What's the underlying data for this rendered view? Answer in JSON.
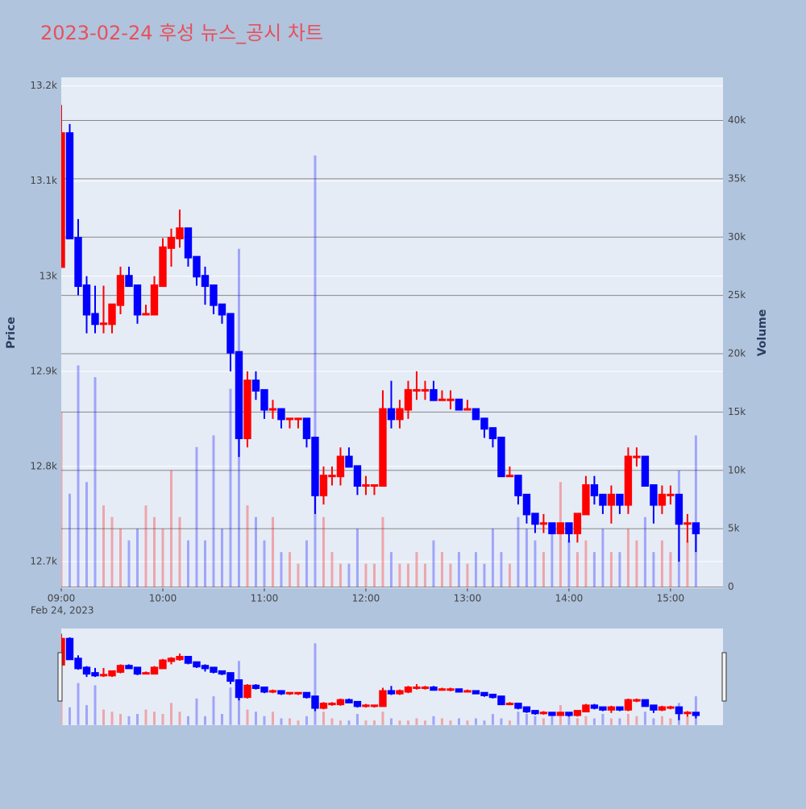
{
  "chart_data": {
    "type": "candlestick",
    "title": "2023-02-24 후성 뉴스_공시 차트",
    "x_date_label": "Feb 24, 2023",
    "yaxis_title": "Price",
    "y2axis_title": "Volume",
    "increasing_color": "#ff0000",
    "decreasing_color": "#0000ff",
    "grid": true,
    "rangeslider": true,
    "x": [
      "2023-02-24 09:00",
      "2023-02-24 09:05",
      "2023-02-24 09:10",
      "2023-02-24 09:15",
      "2023-02-24 09:20",
      "2023-02-24 09:25",
      "2023-02-24 09:30",
      "2023-02-24 09:35",
      "2023-02-24 09:40",
      "2023-02-24 09:45",
      "2023-02-24 09:50",
      "2023-02-24 09:55",
      "2023-02-24 10:00",
      "2023-02-24 10:05",
      "2023-02-24 10:10",
      "2023-02-24 10:15",
      "2023-02-24 10:20",
      "2023-02-24 10:25",
      "2023-02-24 10:30",
      "2023-02-24 10:35",
      "2023-02-24 10:40",
      "2023-02-24 10:45",
      "2023-02-24 10:50",
      "2023-02-24 10:55",
      "2023-02-24 11:00",
      "2023-02-24 11:05",
      "2023-02-24 11:10",
      "2023-02-24 11:15",
      "2023-02-24 11:20",
      "2023-02-24 11:25",
      "2023-02-24 11:30",
      "2023-02-24 11:35",
      "2023-02-24 11:40",
      "2023-02-24 11:45",
      "2023-02-24 11:50",
      "2023-02-24 11:55",
      "2023-02-24 12:00",
      "2023-02-24 12:05",
      "2023-02-24 12:10",
      "2023-02-24 12:15",
      "2023-02-24 12:20",
      "2023-02-24 12:25",
      "2023-02-24 12:30",
      "2023-02-24 12:35",
      "2023-02-24 12:40",
      "2023-02-24 12:45",
      "2023-02-24 12:50",
      "2023-02-24 12:55",
      "2023-02-24 13:00",
      "2023-02-24 13:05",
      "2023-02-24 13:10",
      "2023-02-24 13:15",
      "2023-02-24 13:20",
      "2023-02-24 13:25",
      "2023-02-24 13:30",
      "2023-02-24 13:35",
      "2023-02-24 13:40",
      "2023-02-24 13:45",
      "2023-02-24 13:50",
      "2023-02-24 13:55",
      "2023-02-24 14:00",
      "2023-02-24 14:05",
      "2023-02-24 14:10",
      "2023-02-24 14:15",
      "2023-02-24 14:20",
      "2023-02-24 14:25",
      "2023-02-24 14:30",
      "2023-02-24 14:35",
      "2023-02-24 14:40",
      "2023-02-24 14:45",
      "2023-02-24 14:50",
      "2023-02-24 14:55",
      "2023-02-24 15:00",
      "2023-02-24 15:05",
      "2023-02-24 15:10",
      "2023-02-24 15:15"
    ],
    "open": [
      13010,
      13150,
      13040,
      12990,
      12960,
      12950,
      12950,
      12970,
      13000,
      12990,
      12960,
      12960,
      12990,
      13030,
      13040,
      13050,
      13020,
      13000,
      12990,
      12970,
      12960,
      12920,
      12830,
      12890,
      12880,
      12860,
      12860,
      12850,
      12850,
      12850,
      12830,
      12770,
      12790,
      12790,
      12810,
      12800,
      12780,
      12780,
      12780,
      12860,
      12850,
      12860,
      12880,
      12880,
      12880,
      12870,
      12870,
      12870,
      12860,
      12860,
      12850,
      12840,
      12830,
      12790,
      12790,
      12770,
      12750,
      12740,
      12740,
      12730,
      12740,
      12730,
      12750,
      12780,
      12770,
      12760,
      12770,
      12760,
      12810,
      12810,
      12780,
      12760,
      12770,
      12770,
      12740,
      12740
    ],
    "high": [
      13180,
      13160,
      13060,
      13000,
      12990,
      12990,
      12970,
      13010,
      13010,
      12990,
      12970,
      13000,
      13040,
      13050,
      13070,
      13050,
      13020,
      13010,
      12990,
      12970,
      12960,
      12920,
      12900,
      12900,
      12880,
      12870,
      12860,
      12850,
      12850,
      12850,
      12830,
      12800,
      12800,
      12820,
      12820,
      12800,
      12790,
      12780,
      12880,
      12890,
      12870,
      12890,
      12900,
      12890,
      12890,
      12880,
      12880,
      12870,
      12870,
      12860,
      12850,
      12840,
      12830,
      12800,
      12790,
      12770,
      12750,
      12750,
      12740,
      12740,
      12740,
      12750,
      12790,
      12790,
      12770,
      12780,
      12770,
      12820,
      12820,
      12810,
      12780,
      12780,
      12780,
      12770,
      12750,
      12740
    ],
    "low": [
      13010,
      13040,
      12980,
      12940,
      12940,
      12940,
      12940,
      12960,
      12990,
      12950,
      12960,
      12960,
      12990,
      13010,
      13030,
      13010,
      12990,
      12970,
      12960,
      12950,
      12900,
      12810,
      12820,
      12870,
      12850,
      12850,
      12840,
      12840,
      12840,
      12820,
      12750,
      12760,
      12780,
      12780,
      12800,
      12770,
      12770,
      12770,
      12780,
      12840,
      12840,
      12850,
      12870,
      12870,
      12870,
      12870,
      12860,
      12860,
      12860,
      12850,
      12830,
      12820,
      12790,
      12790,
      12760,
      12740,
      12730,
      12730,
      12730,
      12730,
      12720,
      12720,
      12750,
      12760,
      12750,
      12740,
      12750,
      12750,
      12800,
      12780,
      12740,
      12750,
      12760,
      12700,
      12720,
      12710
    ],
    "close": [
      13150,
      13040,
      12990,
      12960,
      12950,
      12950,
      12970,
      13000,
      12990,
      12960,
      12960,
      12990,
      13030,
      13040,
      13050,
      13020,
      13000,
      12990,
      12970,
      12960,
      12920,
      12830,
      12890,
      12880,
      12860,
      12860,
      12850,
      12850,
      12850,
      12830,
      12770,
      12790,
      12790,
      12810,
      12800,
      12780,
      12780,
      12780,
      12860,
      12850,
      12860,
      12880,
      12880,
      12880,
      12870,
      12870,
      12870,
      12860,
      12860,
      12850,
      12840,
      12830,
      12790,
      12790,
      12770,
      12750,
      12740,
      12740,
      12730,
      12740,
      12730,
      12750,
      12780,
      12770,
      12760,
      12770,
      12760,
      12810,
      12810,
      12780,
      12760,
      12770,
      12770,
      12740,
      12740,
      12730
    ],
    "volume": [
      15000,
      8000,
      19000,
      9000,
      18000,
      7000,
      6000,
      5000,
      4000,
      5000,
      7000,
      6000,
      5000,
      10000,
      6000,
      4000,
      12000,
      4000,
      13000,
      5000,
      17000,
      29000,
      7000,
      6000,
      4000,
      6000,
      3000,
      3000,
      2000,
      4000,
      37000,
      6000,
      3000,
      2000,
      2000,
      5000,
      2000,
      2000,
      6000,
      3000,
      2000,
      2000,
      3000,
      2000,
      4000,
      3000,
      2000,
      3000,
      2000,
      3000,
      2000,
      5000,
      3000,
      2000,
      6000,
      5000,
      4000,
      3000,
      5000,
      9000,
      4000,
      3000,
      4000,
      3000,
      5000,
      3000,
      3000,
      5000,
      4000,
      6000,
      3000,
      4000,
      3000,
      10000,
      4000,
      13000
    ],
    "xlim": [
      "2023-02-24 09:00",
      "2023-02-24 15:31"
    ],
    "xticks": [
      {
        "value": "2023-02-24 09:00",
        "label": "09:00"
      },
      {
        "value": "2023-02-24 10:00",
        "label": "10:00"
      },
      {
        "value": "2023-02-24 11:00",
        "label": "11:00"
      },
      {
        "value": "2023-02-24 12:00",
        "label": "12:00"
      },
      {
        "value": "2023-02-24 13:00",
        "label": "13:00"
      },
      {
        "value": "2023-02-24 14:00",
        "label": "14:00"
      },
      {
        "value": "2023-02-24 15:00",
        "label": "15:00"
      }
    ],
    "ylim": [
      12672,
      13209
    ],
    "yticks": [
      {
        "value": 12700,
        "label": "12.7k"
      },
      {
        "value": 12800,
        "label": "12.8k"
      },
      {
        "value": 12900,
        "label": "12.9k"
      },
      {
        "value": 13000,
        "label": "13k"
      },
      {
        "value": 13100,
        "label": "13.1k"
      },
      {
        "value": 13200,
        "label": "13.2k"
      }
    ],
    "y2lim": [
      -100,
      43700
    ],
    "y2ticks": [
      0,
      {
        "value": 5000,
        "label": "5k"
      },
      {
        "value": 10000,
        "label": "10k"
      },
      {
        "value": 15000,
        "label": "15k"
      },
      {
        "value": 20000,
        "label": "20k"
      },
      {
        "value": 25000,
        "label": "25k"
      },
      {
        "value": 30000,
        "label": "30k"
      },
      {
        "value": 35000,
        "label": "35k"
      },
      {
        "value": 40000,
        "label": "40k"
      }
    ]
  }
}
